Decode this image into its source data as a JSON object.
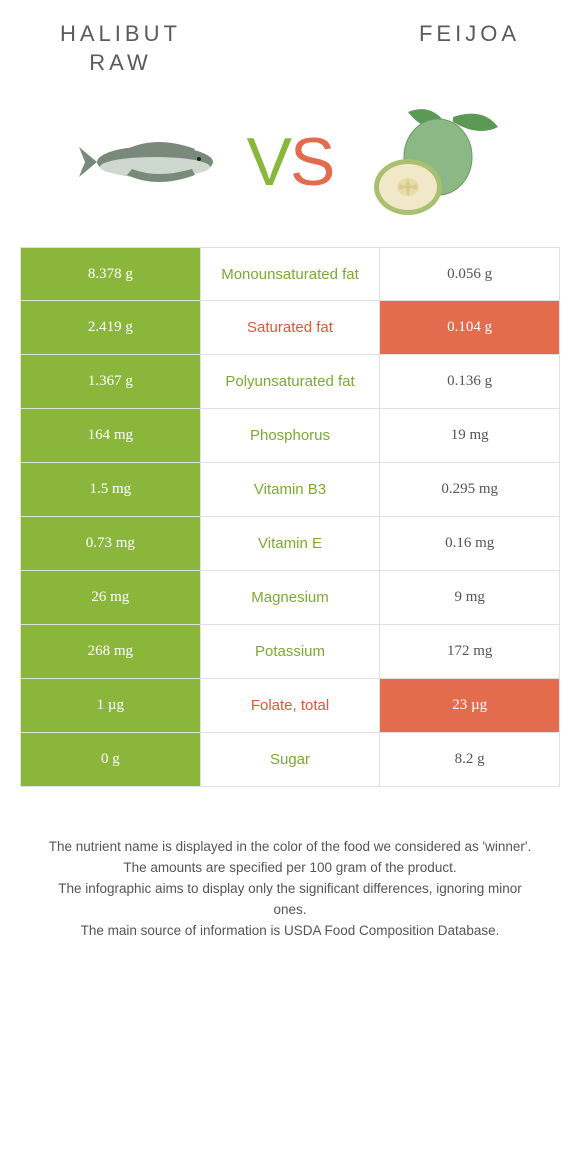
{
  "header": {
    "left_line1": "Halibut",
    "left_line2": "raw",
    "right": "Feijoa"
  },
  "vs": {
    "v": "V",
    "s": "S"
  },
  "colors": {
    "green": "#8bb63c",
    "orange": "#e36b4e",
    "mid_green": "#7da833",
    "mid_orange": "#d65a3a",
    "row_border": "#e0e0e0",
    "background": "#ffffff"
  },
  "rows": [
    {
      "left": "8.378 g",
      "label": "Monounsaturated fat",
      "right": "0.056 g",
      "winner": "left"
    },
    {
      "left": "2.419 g",
      "label": "Saturated fat",
      "right": "0.104 g",
      "winner": "right"
    },
    {
      "left": "1.367 g",
      "label": "Polyunsaturated fat",
      "right": "0.136 g",
      "winner": "left"
    },
    {
      "left": "164 mg",
      "label": "Phosphorus",
      "right": "19 mg",
      "winner": "left"
    },
    {
      "left": "1.5 mg",
      "label": "Vitamin B3",
      "right": "0.295 mg",
      "winner": "left"
    },
    {
      "left": "0.73 mg",
      "label": "Vitamin E",
      "right": "0.16 mg",
      "winner": "left"
    },
    {
      "left": "26 mg",
      "label": "Magnesium",
      "right": "9 mg",
      "winner": "left"
    },
    {
      "left": "268 mg",
      "label": "Potassium",
      "right": "172 mg",
      "winner": "left"
    },
    {
      "left": "1 µg",
      "label": "Folate, total",
      "right": "23 µg",
      "winner": "right"
    },
    {
      "left": "0 g",
      "label": "Sugar",
      "right": "8.2 g",
      "winner": "left"
    }
  ],
  "footer": {
    "line1": "The nutrient name is displayed in the color of the food we considered as 'winner'.",
    "line2": "The amounts are specified per 100 gram of the product.",
    "line3": "The infographic aims to display only the significant differences, ignoring minor ones.",
    "line4": "The main source of information is USDA Food Composition Database."
  }
}
